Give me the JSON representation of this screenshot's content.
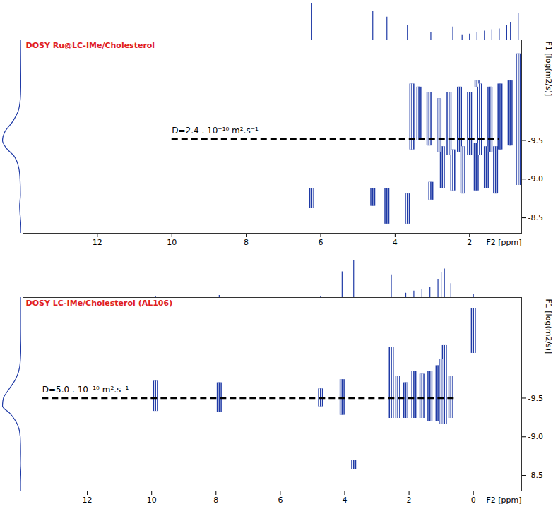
{
  "chart_data": [
    {
      "type": "dosy",
      "title": "DOSY Ru@LC-IMe/Cholesterol",
      "x_label": "F2 [ppm]",
      "y_label": "F1 [log(m2/s)]",
      "xlim": [
        14,
        0.6
      ],
      "xticks": [
        12,
        10,
        8,
        6,
        4,
        2
      ],
      "ylim": [
        -8.3,
        -10.8
      ],
      "yticks": [
        -9.5,
        {
          "value": -9,
          "label": "-9.0"
        },
        -8.5
      ],
      "color": "#1f3aa6",
      "peaks": {
        "ppm": [
          0.69,
          1.8,
          3.55,
          3.36,
          3.09,
          2.82,
          2.55,
          2.27,
          2.0,
          1.73,
          1.45,
          1.18,
          0.91,
          2.73,
          2.45,
          2.18,
          1.82,
          1.55,
          1.3,
          6.24,
          4.6,
          4.22,
          3.67,
          3.04
        ],
        "logD_from": [
          -10.62,
          -10.27,
          -10.23,
          -10.19,
          -10.12,
          -10.04,
          -10.12,
          -10.19,
          -10.12,
          -10.23,
          -10.19,
          -10.23,
          -10.27,
          -9.42,
          -9.38,
          -9.42,
          -9.46,
          -9.42,
          -9.42,
          -8.88,
          -8.88,
          -8.88,
          -8.81,
          -8.96
        ],
        "logD_to": [
          -8.92,
          -10.19,
          -9.38,
          -9.5,
          -9.43,
          -9.35,
          -9.31,
          -9.35,
          -9.31,
          -9.31,
          -9.35,
          -9.38,
          -9.43,
          -8.88,
          -8.85,
          -8.81,
          -8.85,
          -8.88,
          -8.81,
          -8.62,
          -8.65,
          -8.42,
          -8.42,
          -8.73
        ]
      },
      "spectrum": {
        "ppm": [
          6.24,
          4.6,
          4.22,
          3.67,
          3.04,
          2.45,
          2.2,
          2.0,
          1.8,
          1.6,
          1.4,
          1.2,
          1.0,
          0.9,
          0.69
        ],
        "intensity": [
          100,
          78,
          62,
          40,
          20,
          35,
          14,
          16,
          20,
          24,
          28,
          30,
          40,
          48,
          72
        ]
      },
      "projection": {
        "logD": [
          -10.8,
          -10.4,
          -10.1,
          -9.9,
          -9.75,
          -9.6,
          -9.5,
          -9.4,
          -9.3,
          -9.15,
          -9.0,
          -8.8,
          -8.65,
          -8.55,
          -8.4,
          -8.3
        ],
        "intensity": [
          0.02,
          0.03,
          0.05,
          0.15,
          0.45,
          0.9,
          1.0,
          0.8,
          0.4,
          0.15,
          0.08,
          0.06,
          0.1,
          0.08,
          0.03,
          0.02
        ]
      },
      "annotation": {
        "text": "D=2.4 . 10⁻¹⁰ m².s⁻¹",
        "y": -9.52,
        "x": [
          10.0,
          1.2
        ]
      }
    },
    {
      "type": "dosy",
      "title": "DOSY LC-IMe/Cholesterol (AL106)",
      "x_label": "F2 [ppm]",
      "y_label": "F1 [log(m2/s)]",
      "xlim": [
        14,
        -1.5
      ],
      "xticks": [
        12,
        10,
        8,
        6,
        4,
        2,
        0
      ],
      "ylim": [
        -8.3,
        -10.8
      ],
      "yticks": [
        -9.5,
        {
          "value": -9,
          "label": "-9.0"
        },
        -8.5
      ],
      "color": "#1f3aa6",
      "peaks": {
        "ppm": [
          9.88,
          7.9,
          4.75,
          4.08,
          3.72,
          2.55,
          2.35,
          2.1,
          1.85,
          1.6,
          1.35,
          1.1,
          1.0,
          0.9,
          0.7,
          0.0
        ],
        "logD_from": [
          -9.72,
          -9.7,
          -9.62,
          -9.74,
          -8.7,
          -10.16,
          -9.78,
          -9.7,
          -9.85,
          -9.81,
          -9.85,
          -9.92,
          -10.0,
          -10.18,
          -9.78,
          -10.66
        ],
        "logD_to": [
          -9.33,
          -9.32,
          -9.39,
          -9.28,
          -8.58,
          -9.24,
          -9.24,
          -9.24,
          -9.24,
          -9.24,
          -9.2,
          -9.2,
          -9.16,
          -9.16,
          -9.24,
          -10.08
        ]
      },
      "spectrum": {
        "ppm": [
          9.88,
          7.9,
          4.75,
          4.08,
          3.72,
          2.55,
          2.1,
          1.85,
          1.6,
          1.35,
          1.1,
          1.0,
          0.9,
          0.7,
          0.0
        ],
        "intensity": [
          4,
          6,
          4,
          70,
          100,
          62,
          12,
          18,
          22,
          28,
          50,
          68,
          78,
          38,
          8
        ]
      },
      "projection": {
        "logD": [
          -10.8,
          -10.4,
          -10.1,
          -9.9,
          -9.75,
          -9.6,
          -9.5,
          -9.4,
          -9.3,
          -9.15,
          -9.0,
          -8.8,
          -8.65,
          -8.55,
          -8.4,
          -8.3
        ],
        "intensity": [
          0.02,
          0.02,
          0.04,
          0.1,
          0.3,
          0.7,
          0.95,
          1.0,
          0.6,
          0.2,
          0.07,
          0.05,
          0.06,
          0.04,
          0.02,
          0.02
        ]
      },
      "annotation": {
        "text": "D=5.0 . 10⁻¹⁰ m².s⁻¹",
        "y": -9.5,
        "x": [
          13.4,
          0.6
        ]
      }
    }
  ]
}
